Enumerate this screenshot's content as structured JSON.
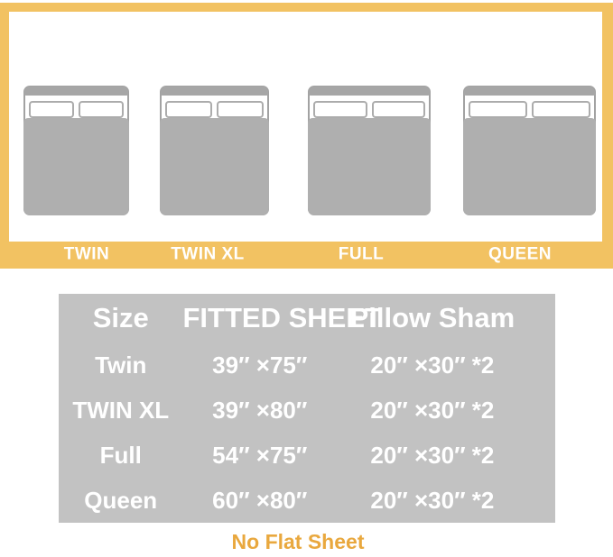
{
  "bed_diagram": {
    "beds": [
      {
        "label": "TWIN"
      },
      {
        "label": "TWIN XL"
      },
      {
        "label": "FULL"
      },
      {
        "label": "QUEEN"
      }
    ]
  },
  "size_table": {
    "headers": [
      "Size",
      "FITTED SHEET",
      "Pillow Sham"
    ],
    "rows": [
      {
        "size": "Twin",
        "fitted_sheet": "39″ ×75″",
        "pillow_sham": "20″ ×30″ *2"
      },
      {
        "size": "TWIN XL",
        "fitted_sheet": "39″ ×80″",
        "pillow_sham": "20″ ×30″ *2"
      },
      {
        "size": "Full",
        "fitted_sheet": "54″ ×75″",
        "pillow_sham": "20″ ×30″ *2"
      },
      {
        "size": "Queen",
        "fitted_sheet": "60″ ×80″",
        "pillow_sham": "20″ ×30″ *2"
      }
    ]
  },
  "footnote": "No Flat Sheet",
  "colors": {
    "accent_yellow": "#F2C262",
    "table_gray": "#C2C2C2",
    "mattress_gray": "#AFAFAF",
    "footnote_orange": "#E9A83E"
  }
}
